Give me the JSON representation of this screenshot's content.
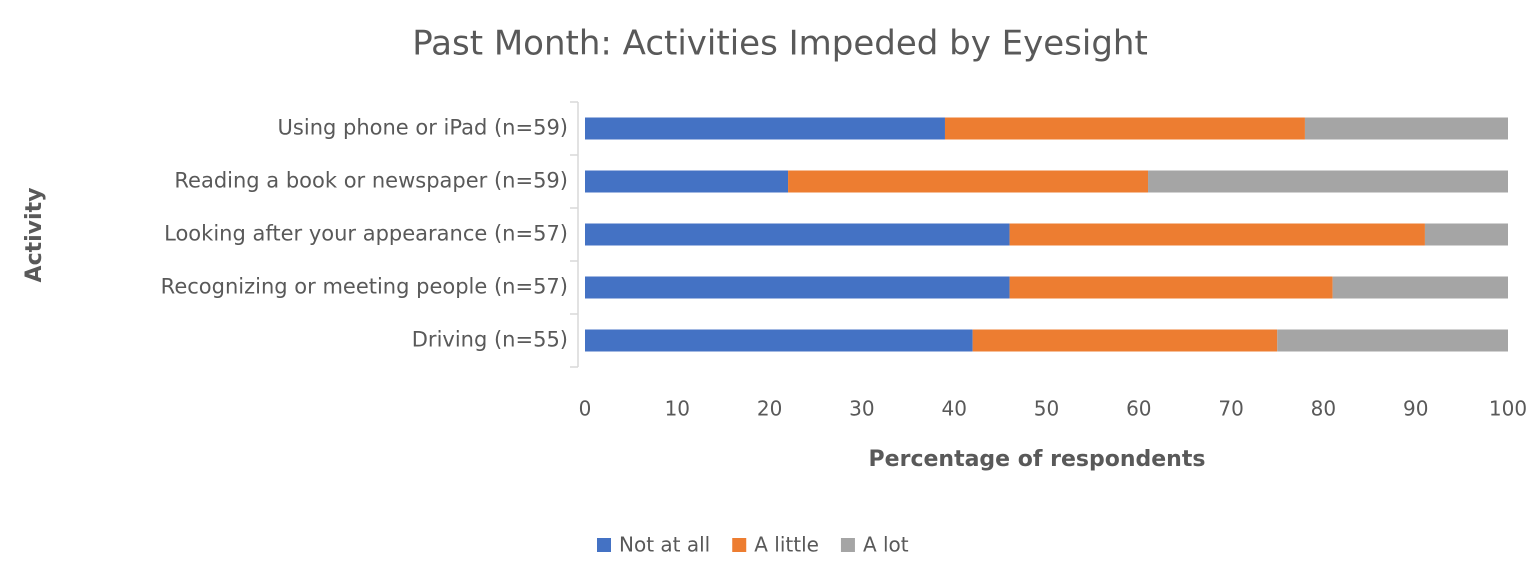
{
  "chart_data": {
    "type": "stacked-bar-horizontal",
    "title": "Past Month: Activities Impeded by Eyesight",
    "x_label": "Percentage of respondents",
    "y_label": "Activity",
    "categories": [
      "Using phone or iPad (n=59)",
      "Reading a book or newspaper (n=59)",
      "Looking after your appearance (n=57)",
      "Recognizing or meeting people (n=57)",
      "Driving (n=55)"
    ],
    "series": [
      {
        "name": "Not at all",
        "color": "#4472c4",
        "values": [
          39,
          22,
          46,
          46,
          42
        ]
      },
      {
        "name": "A little",
        "color": "#ed7d31",
        "values": [
          39,
          39,
          45,
          35,
          33
        ]
      },
      {
        "name": "A lot",
        "color": "#a5a5a5",
        "values": [
          22,
          39,
          9,
          19,
          25
        ]
      }
    ],
    "xlim": [
      0,
      100
    ],
    "xticks": [
      0,
      10,
      20,
      30,
      40,
      50,
      60,
      70,
      80,
      90,
      100
    ],
    "legend": "bottom"
  }
}
